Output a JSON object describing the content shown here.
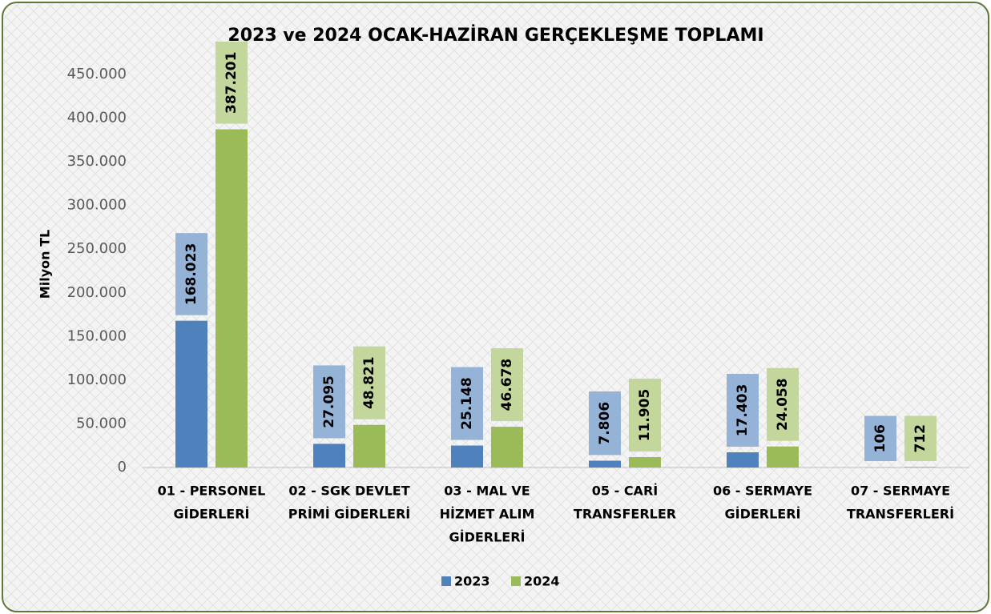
{
  "chart_data": {
    "type": "bar",
    "title": "2023 ve 2024 OCAK-HAZİRAN GERÇEKLEŞME TOPLAMI",
    "y_label": "Milyon TL",
    "categories": [
      [
        "01 - PERSONEL",
        "GİDERLERİ"
      ],
      [
        "02 - SGK DEVLET",
        "PRİMİ GİDERLERİ"
      ],
      [
        "03 - MAL VE",
        "HİZMET ALIM",
        "GİDERLERİ"
      ],
      [
        "05 - CARİ",
        "TRANSFERLER"
      ],
      [
        "06 - SERMAYE",
        "GİDERLERİ"
      ],
      [
        "07 - SERMAYE",
        "TRANSFERLERİ"
      ]
    ],
    "series": [
      {
        "name": "2023",
        "color": "#4f81bd",
        "label_box": "#95b3d7",
        "values": [
          168023,
          27095,
          25148,
          7806,
          17403,
          106
        ],
        "value_labels": [
          "168.023",
          "27.095",
          "25.148",
          "7.806",
          "17.403",
          "106"
        ]
      },
      {
        "name": "2024",
        "color": "#9bbb59",
        "label_box": "#c3d69b",
        "values": [
          387201,
          48821,
          46678,
          11905,
          24058,
          712
        ],
        "value_labels": [
          "387.201",
          "48.821",
          "46.678",
          "11.905",
          "24.058",
          "712"
        ]
      }
    ],
    "ylim": [
      0,
      450000
    ],
    "yticks": [
      0,
      {
        "value": 50000,
        "label": "50.000"
      },
      {
        "value": 100000,
        "label": "100.000"
      },
      {
        "value": 150000,
        "label": "150.000"
      },
      {
        "value": 200000,
        "label": "200.000"
      },
      {
        "value": 250000,
        "label": "250.000"
      },
      {
        "value": 300000,
        "label": "300.000"
      },
      {
        "value": 350000,
        "label": "350.000"
      },
      {
        "value": 400000,
        "label": "400.000"
      },
      {
        "value": 450000,
        "label": "450.000"
      }
    ],
    "grid": false,
    "legend": "bottom"
  }
}
